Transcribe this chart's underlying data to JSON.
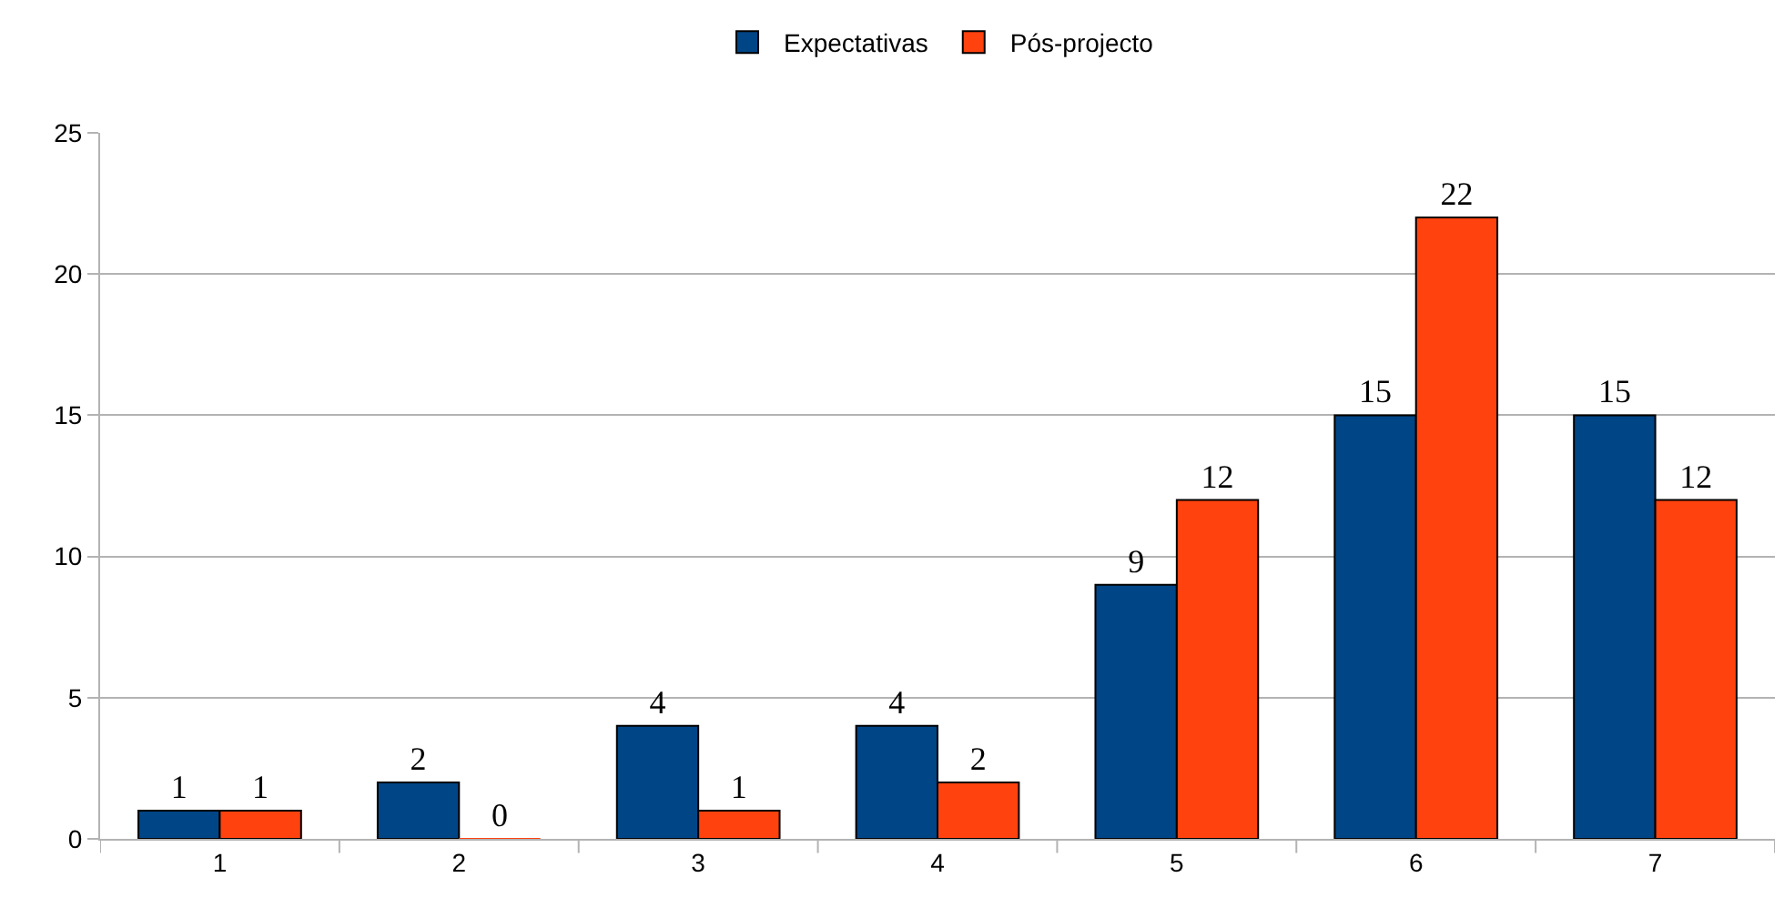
{
  "chart_data": {
    "type": "bar",
    "categories": [
      "1",
      "2",
      "3",
      "4",
      "5",
      "6",
      "7"
    ],
    "series": [
      {
        "name": "Expectativas",
        "color": "#004586",
        "values": [
          1,
          2,
          4,
          4,
          9,
          15,
          15
        ]
      },
      {
        "name": "Pós-projecto",
        "color": "#ff420e",
        "values": [
          1,
          0,
          1,
          2,
          12,
          22,
          12
        ]
      }
    ],
    "ylim": [
      0,
      25
    ],
    "yticks": [
      0,
      5,
      10,
      15,
      20,
      25
    ],
    "grid": "y",
    "legend": "top",
    "data_labels": true
  }
}
